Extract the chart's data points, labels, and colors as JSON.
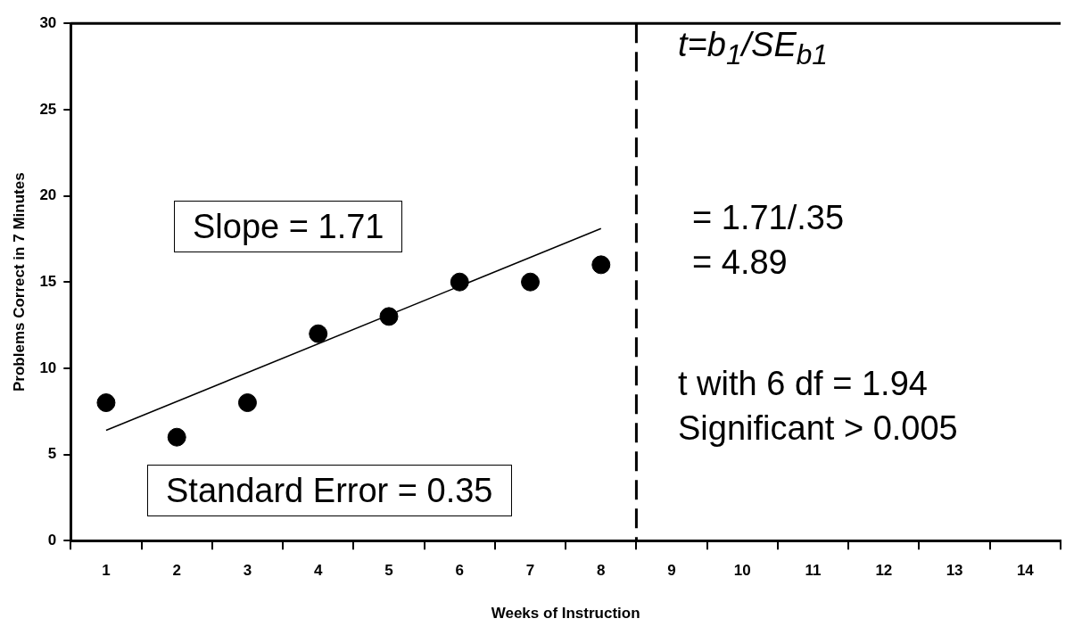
{
  "chart_data": {
    "type": "scatter",
    "xlabel": "Weeks of Instruction",
    "ylabel": "Problems Correct in 7 Minutes",
    "x": [
      1,
      2,
      3,
      4,
      5,
      6,
      7,
      8
    ],
    "series": [
      {
        "color": "#000000",
        "values": [
          8,
          6,
          8,
          12,
          13,
          15,
          15,
          16
        ],
        "marker": "circle"
      },
      {
        "type": "line",
        "color": "#000000",
        "x": [
          1,
          8
        ],
        "values": [
          6.4,
          18.1
        ],
        "marker": "none"
      }
    ],
    "xlim": [
      0.5,
      14.5
    ],
    "xticks": [
      {
        "value": 0.5,
        "label": null
      },
      1,
      {
        "value": 1.5,
        "label": null
      },
      2,
      {
        "value": 2.5,
        "label": null
      },
      3,
      {
        "value": 3.5,
        "label": null
      },
      4,
      {
        "value": 4.5,
        "label": null
      },
      5,
      {
        "value": 5.5,
        "label": null
      },
      6,
      {
        "value": 6.5,
        "label": null
      },
      7,
      {
        "value": 7.5,
        "label": null
      },
      8,
      {
        "value": 8.5,
        "label": null
      },
      9,
      {
        "value": 9.5,
        "label": null
      },
      10,
      {
        "value": 10.5,
        "label": null
      },
      11,
      {
        "value": 11.5,
        "label": null
      },
      12,
      {
        "value": 12.5,
        "label": null
      },
      13,
      {
        "value": 13.5,
        "label": null
      },
      14,
      {
        "value": 14.5,
        "label": null
      }
    ],
    "ylim": [
      0,
      30
    ],
    "yticks": [
      0,
      5,
      10,
      15,
      20,
      25,
      30
    ],
    "grid": false,
    "legend": false,
    "ref_lines": [
      {
        "axis": "x",
        "value": 8.5,
        "color": "#000000",
        "line_style": "dashed"
      }
    ],
    "annotations": [
      "Slope = 1.71",
      "Standard Error = 0.35",
      "t=b$_{1}$/SE$_{b1}$",
      "= 1.71/.35",
      "= 4.89",
      "t with 6 df = 1.94",
      "Significant > 0.005"
    ]
  }
}
